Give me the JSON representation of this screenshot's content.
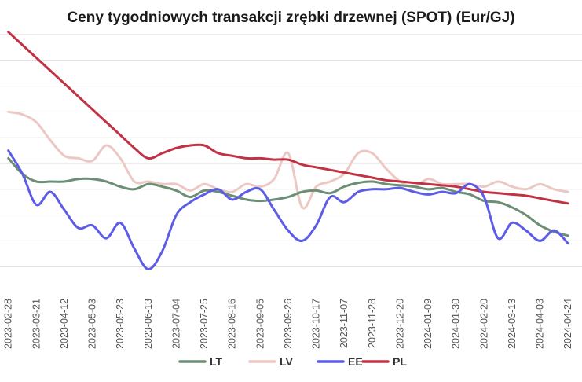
{
  "chart_data": {
    "type": "line",
    "title": "Ceny tygodniowych transakcji zrębki drzewnej (SPOT) (Eur/GJ)",
    "xlabel": "",
    "ylabel": "",
    "grid": true,
    "legend_position": "bottom",
    "x_tick_labels": [
      "2023-02-28",
      "2023-03-21",
      "2023-04-12",
      "2023-05-03",
      "2023-05-23",
      "2023-06-13",
      "2023-07-04",
      "2023-07-25",
      "2023-08-16",
      "2023-09-05",
      "2023-09-26",
      "2023-10-17",
      "2023-11-07",
      "2023-11-28",
      "2023-12-20",
      "2024-01-09",
      "2024-01-30",
      "2024-02-20",
      "2024-03-13",
      "2024-04-03",
      "2024-04-24"
    ],
    "x": [
      0,
      0.5,
      1,
      1.5,
      2,
      2.5,
      3,
      3.5,
      4,
      4.5,
      5,
      5.5,
      6,
      6.5,
      7,
      7.5,
      8,
      8.5,
      9,
      9.5,
      10,
      10.5,
      11,
      11.5,
      12,
      12.5,
      13,
      13.5,
      14,
      14.5,
      15,
      15.5,
      16,
      16.5,
      17,
      17.5,
      18,
      18.5,
      19,
      19.5,
      20
    ],
    "series": [
      {
        "name": "LT",
        "color": "#6b8e75",
        "values": [
          6.2,
          5.6,
          5.3,
          5.3,
          5.3,
          5.4,
          5.4,
          5.3,
          5.1,
          5.0,
          5.2,
          5.1,
          4.95,
          4.7,
          4.95,
          4.9,
          4.75,
          4.6,
          4.55,
          4.6,
          4.7,
          4.9,
          4.95,
          4.85,
          5.1,
          5.25,
          5.3,
          5.2,
          5.15,
          5.1,
          5.0,
          5.05,
          4.9,
          4.8,
          4.55,
          4.5,
          4.3,
          4.0,
          3.6,
          3.35,
          3.2
        ]
      },
      {
        "name": "LV",
        "color": "#ecc8c4",
        "values": [
          8.0,
          7.9,
          7.6,
          6.9,
          6.3,
          6.2,
          6.1,
          6.7,
          6.2,
          5.3,
          5.3,
          5.2,
          5.2,
          4.95,
          5.2,
          5.0,
          4.9,
          5.2,
          5.1,
          5.4,
          6.4,
          4.3,
          5.1,
          5.3,
          5.6,
          6.4,
          6.4,
          5.8,
          5.3,
          5.1,
          5.4,
          5.2,
          5.2,
          5.2,
          5.1,
          5.3,
          5.1,
          5.0,
          5.2,
          5.0,
          4.9
        ]
      },
      {
        "name": "EE",
        "color": "#5c5ce6",
        "values": [
          6.5,
          5.6,
          4.4,
          4.9,
          4.2,
          3.5,
          3.6,
          3.1,
          3.7,
          2.7,
          1.9,
          2.6,
          4.0,
          4.5,
          4.8,
          5.0,
          4.6,
          4.9,
          5.0,
          4.2,
          3.4,
          3.0,
          3.6,
          4.7,
          4.5,
          4.9,
          5.0,
          5.0,
          5.05,
          4.9,
          4.8,
          4.9,
          4.85,
          5.2,
          4.7,
          3.1,
          3.7,
          3.4,
          3.0,
          3.4,
          2.9
        ]
      },
      {
        "name": "PL",
        "color": "#c13344",
        "values": [
          11.1,
          10.6,
          10.1,
          9.6,
          9.1,
          8.6,
          8.1,
          7.6,
          7.1,
          6.6,
          6.2,
          6.4,
          6.6,
          6.7,
          6.7,
          6.4,
          6.3,
          6.2,
          6.2,
          6.15,
          6.15,
          5.95,
          5.85,
          5.75,
          5.65,
          5.55,
          5.45,
          5.35,
          5.3,
          5.25,
          5.2,
          5.15,
          5.1,
          5.0,
          4.9,
          4.85,
          4.8,
          4.75,
          4.65,
          4.55,
          4.45
        ]
      }
    ],
    "xlim": [
      -0.3,
      20.5
    ],
    "ylim": [
      1,
      11
    ],
    "y_grid_values": [
      2,
      3,
      4,
      5,
      6,
      7,
      8,
      9,
      10,
      11
    ]
  }
}
